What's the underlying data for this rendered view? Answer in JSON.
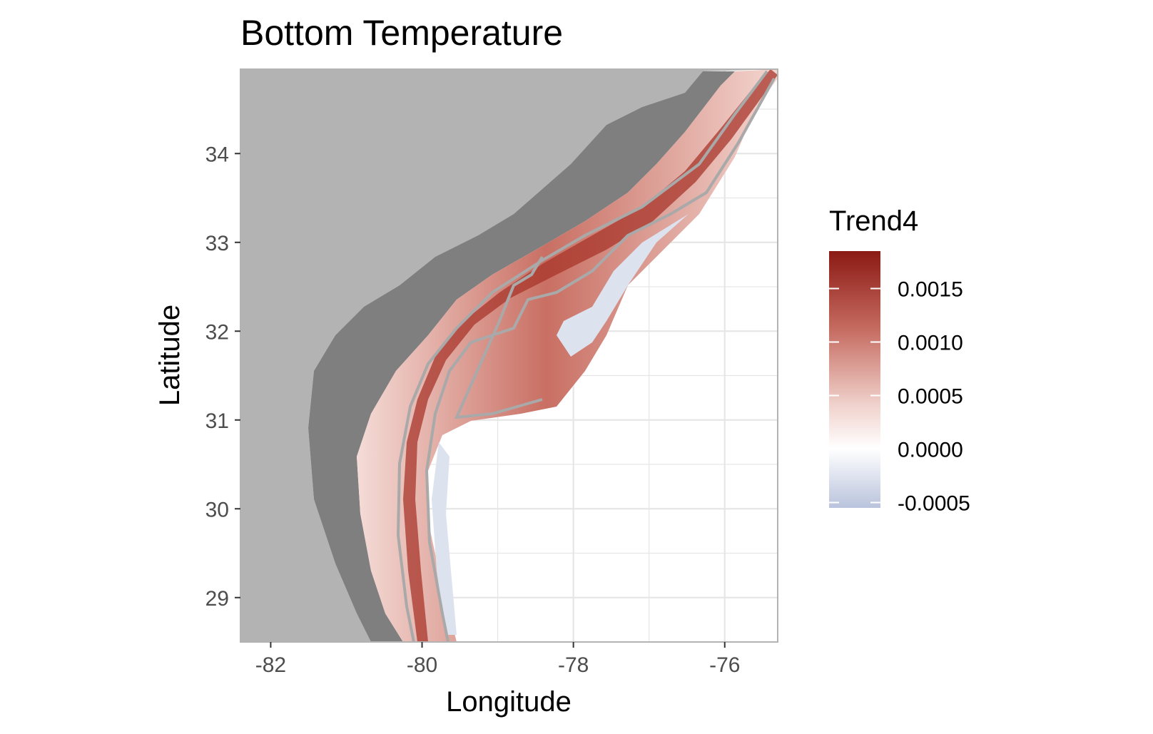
{
  "chart_data": {
    "type": "map",
    "title": "Bottom Temperature",
    "xlabel": "Longitude",
    "ylabel": "Latitude",
    "xlim": [
      -82.4,
      -75.3
    ],
    "ylim": [
      28.5,
      34.95
    ],
    "x_ticks": [
      {
        "value": -82,
        "label": "-82"
      },
      {
        "value": -80,
        "label": "-80"
      },
      {
        "value": -78,
        "label": "-78"
      },
      {
        "value": -76,
        "label": "-76"
      }
    ],
    "y_ticks": [
      {
        "value": 29,
        "label": "29"
      },
      {
        "value": 30,
        "label": "30"
      },
      {
        "value": 31,
        "label": "31"
      },
      {
        "value": 32,
        "label": "32"
      },
      {
        "value": 33,
        "label": "33"
      },
      {
        "value": 34,
        "label": "34"
      }
    ],
    "legend": {
      "title": "Trend4",
      "position": "right",
      "limits": [
        -0.00055,
        0.00185
      ],
      "breaks": [
        {
          "value": 0.0015,
          "label": "0.0015"
        },
        {
          "value": 0.001,
          "label": "0.0010"
        },
        {
          "value": 0.0005,
          "label": "0.0005"
        },
        {
          "value": 0.0,
          "label": "0.0000"
        },
        {
          "value": -0.0005,
          "label": "-0.0005"
        }
      ],
      "colors": {
        "low": "#b9c3dc",
        "mid": "#ffffff",
        "high": "#8b1a14"
      }
    },
    "colors": {
      "land": "#b3b3b3",
      "no_data_shelf": "#7f7f7f",
      "isobath": "#a9a9a9",
      "grid": "#e6e6e6",
      "panel_border": "#b3b3b3"
    }
  }
}
